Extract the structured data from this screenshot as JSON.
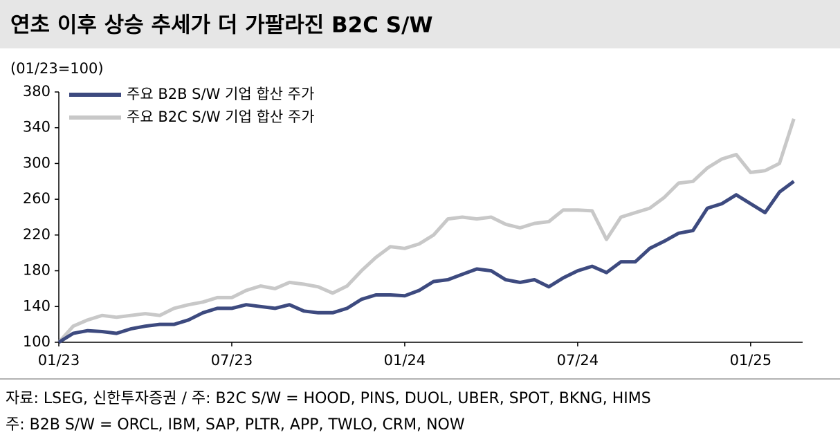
{
  "chart_data": {
    "type": "line",
    "title": "연초 이후 상승 추세가 더 가팔라진 B2C S/W",
    "y_axis_label": "(01/23=100)",
    "categories": [
      "01/23",
      null,
      null,
      null,
      null,
      null,
      null,
      null,
      null,
      null,
      null,
      null,
      "07/23",
      null,
      null,
      null,
      null,
      null,
      null,
      null,
      null,
      null,
      null,
      null,
      "01/24",
      null,
      null,
      null,
      null,
      null,
      null,
      null,
      null,
      null,
      null,
      null,
      "07/24",
      null,
      null,
      null,
      null,
      null,
      null,
      null,
      null,
      null,
      null,
      null,
      "01/25",
      null,
      null,
      null
    ],
    "series": [
      {
        "name": "주요 B2B S/W 기업 합산 주가",
        "color": "#3d4a7f",
        "values": [
          100,
          110,
          113,
          112,
          110,
          115,
          118,
          120,
          120,
          125,
          133,
          138,
          138,
          142,
          140,
          138,
          142,
          135,
          133,
          133,
          138,
          148,
          153,
          153,
          152,
          158,
          168,
          170,
          176,
          182,
          180,
          170,
          167,
          170,
          162,
          172,
          180,
          185,
          178,
          190,
          190,
          205,
          213,
          222,
          225,
          250,
          255,
          265,
          255,
          245,
          268,
          280
        ]
      },
      {
        "name": "주요 B2C S/W 기업 합산 주가",
        "color": "#c8c8c8",
        "values": [
          100,
          118,
          125,
          130,
          128,
          130,
          132,
          130,
          138,
          142,
          145,
          150,
          150,
          158,
          163,
          160,
          167,
          165,
          162,
          155,
          163,
          180,
          195,
          207,
          205,
          210,
          220,
          238,
          240,
          238,
          240,
          232,
          228,
          233,
          235,
          248,
          248,
          247,
          215,
          240,
          245,
          250,
          262,
          278,
          280,
          295,
          305,
          310,
          290,
          292,
          300,
          350
        ]
      }
    ],
    "ylim": [
      100,
      380
    ],
    "yticks": [
      100,
      140,
      180,
      220,
      260,
      300,
      340,
      380
    ],
    "grid": false,
    "legend": "upper left",
    "notes": [
      "자료: LSEG, 신한투자증권 / 주: B2C S/W = HOOD, PINS, DUOL, UBER, SPOT, BKNG, HIMS",
      "주: B2B S/W = ORCL, IBM, SAP, PLTR, APP, TWLO, CRM, NOW"
    ]
  }
}
